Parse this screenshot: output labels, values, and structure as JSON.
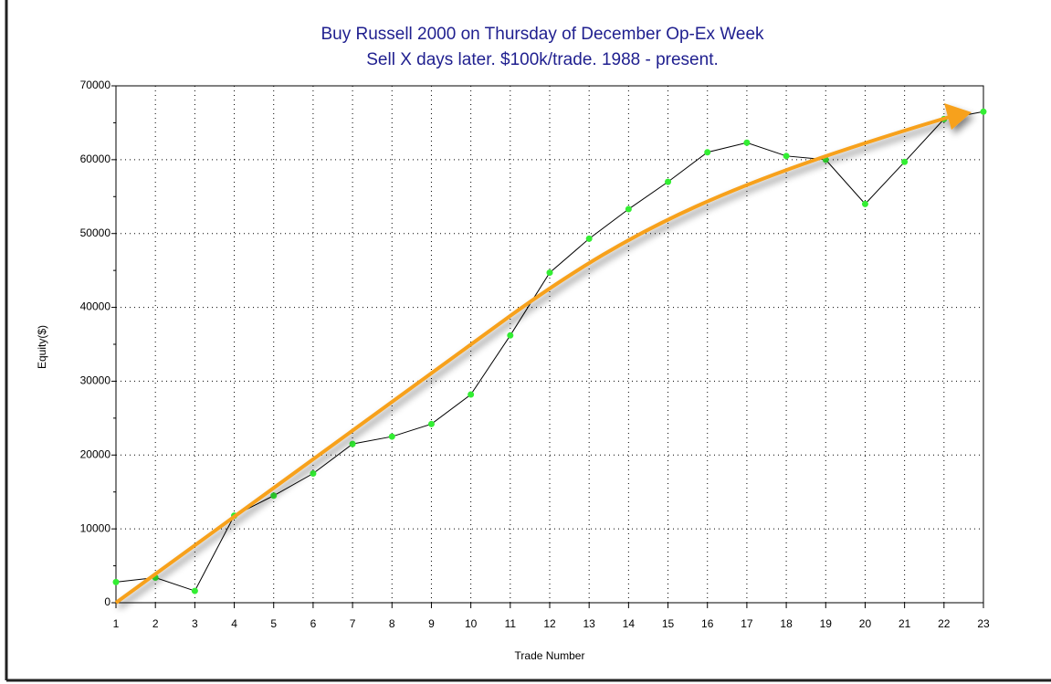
{
  "chart_data": {
    "type": "line",
    "title": "Buy Russell 2000 on Thursday of December Op-Ex Week",
    "subtitle": "Sell X days later. $100k/trade. 1988 - present.",
    "x_label": "Trade Number",
    "y_label": "Equity($)",
    "x": [
      1,
      2,
      3,
      4,
      5,
      6,
      7,
      8,
      9,
      10,
      11,
      12,
      13,
      14,
      15,
      16,
      17,
      18,
      19,
      20,
      21,
      22,
      23
    ],
    "series": [
      {
        "name": "Equity",
        "color": "#000000",
        "marker_color": "#33ee33",
        "values": [
          2800,
          3400,
          1600,
          11800,
          14500,
          17500,
          21500,
          22500,
          24200,
          28200,
          36200,
          44700,
          49300,
          53300,
          57000,
          61000,
          62300,
          60500,
          60000,
          54000,
          59700,
          65500,
          66500
        ]
      }
    ],
    "xlim": [
      1,
      23
    ],
    "xticks": [
      1,
      2,
      3,
      4,
      5,
      6,
      7,
      8,
      9,
      10,
      11,
      12,
      13,
      14,
      15,
      16,
      17,
      18,
      19,
      20,
      21,
      22,
      23
    ],
    "ylim": [
      0,
      70000
    ],
    "yticks": [
      0,
      10000,
      20000,
      30000,
      40000,
      50000,
      60000,
      70000
    ],
    "grid": true
  }
}
